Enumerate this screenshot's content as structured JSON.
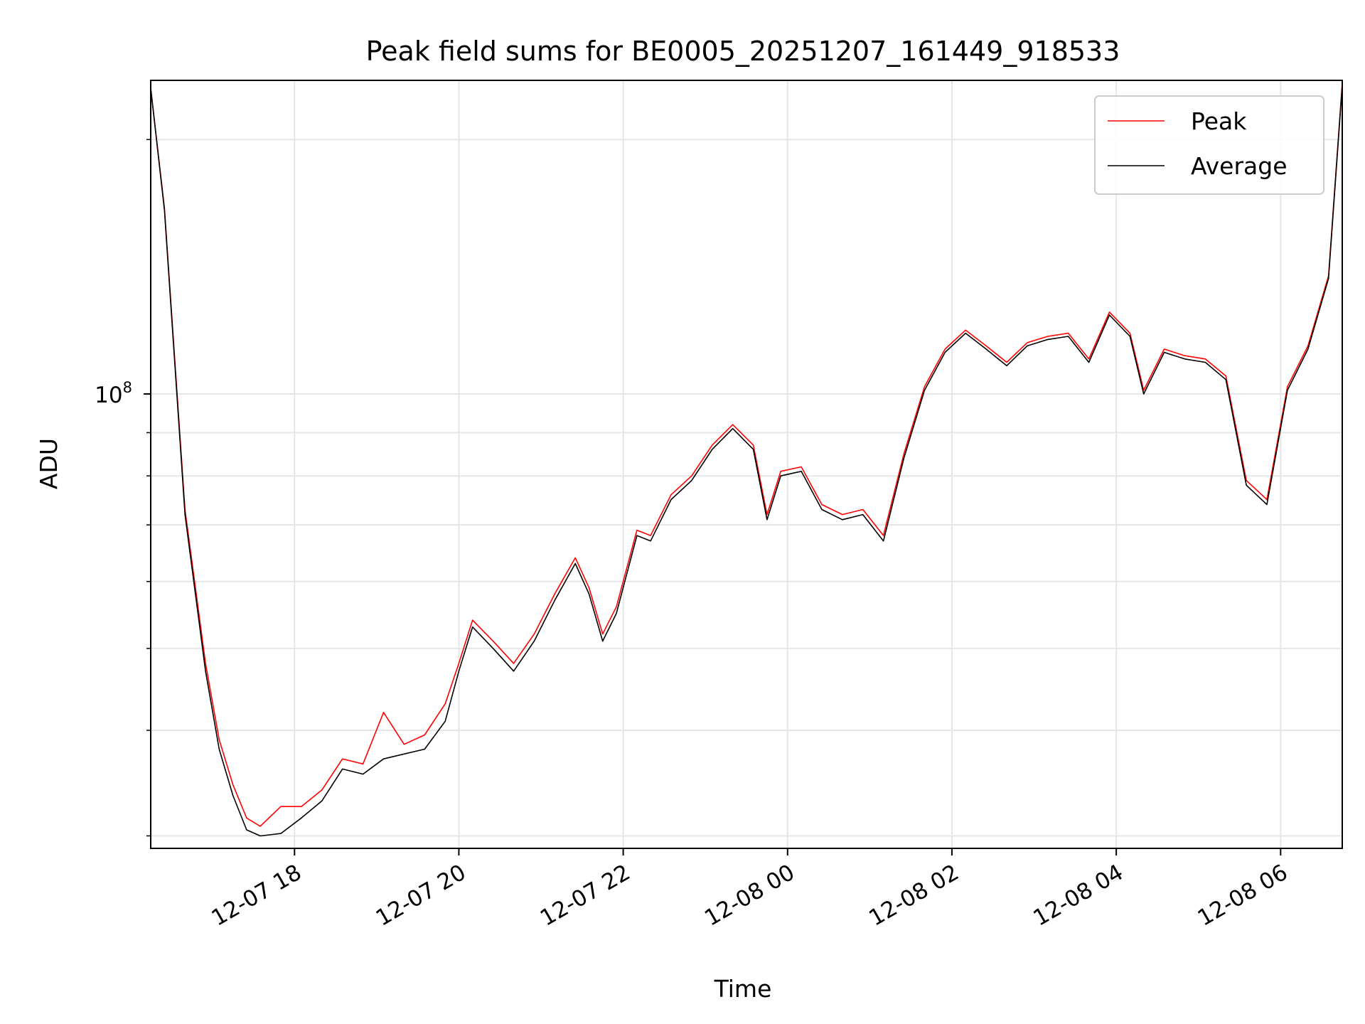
{
  "chart_data": {
    "type": "line",
    "title": "Peak field sums for BE0005_20251207_161449_918533",
    "xlabel": "Time",
    "ylabel": "ADU",
    "yscale": "log",
    "xlim": [
      "2025-12-07 16:15",
      "2025-12-08 06:45"
    ],
    "ylim": [
      29000000,
      235000000
    ],
    "x_ticks": [
      {
        "value": "2025-12-07 18:00",
        "label": "12-07 18"
      },
      {
        "value": "2025-12-07 20:00",
        "label": "12-07 20"
      },
      {
        "value": "2025-12-07 22:00",
        "label": "12-07 22"
      },
      {
        "value": "2025-12-08 00:00",
        "label": "12-08 00"
      },
      {
        "value": "2025-12-08 02:00",
        "label": "12-08 02"
      },
      {
        "value": "2025-12-08 04:00",
        "label": "12-08 04"
      },
      {
        "value": "2025-12-08 06:00",
        "label": "12-08 06"
      }
    ],
    "y_ticks": [
      {
        "value": 100000000,
        "label": "10",
        "exponent": "8"
      }
    ],
    "y_minor_ticks": [
      30000000,
      40000000,
      50000000,
      60000000,
      70000000,
      80000000,
      90000000,
      200000000
    ],
    "grid": true,
    "legend_position": "top-right",
    "series": [
      {
        "name": "Average",
        "color": "#000000",
        "x": [
          "2025-12-07 16:15",
          "2025-12-07 16:25",
          "2025-12-07 16:40",
          "2025-12-07 16:55",
          "2025-12-07 17:05",
          "2025-12-07 17:15",
          "2025-12-07 17:25",
          "2025-12-07 17:35",
          "2025-12-07 17:50",
          "2025-12-07 18:05",
          "2025-12-07 18:20",
          "2025-12-07 18:35",
          "2025-12-07 18:50",
          "2025-12-07 19:05",
          "2025-12-07 19:20",
          "2025-12-07 19:35",
          "2025-12-07 19:50",
          "2025-12-07 20:00",
          "2025-12-07 20:10",
          "2025-12-07 20:25",
          "2025-12-07 20:40",
          "2025-12-07 20:55",
          "2025-12-07 21:10",
          "2025-12-07 21:25",
          "2025-12-07 21:35",
          "2025-12-07 21:45",
          "2025-12-07 21:55",
          "2025-12-07 22:10",
          "2025-12-07 22:20",
          "2025-12-07 22:35",
          "2025-12-07 22:50",
          "2025-12-07 23:05",
          "2025-12-07 23:20",
          "2025-12-07 23:35",
          "2025-12-07 23:45",
          "2025-12-07 23:55",
          "2025-12-08 00:10",
          "2025-12-08 00:25",
          "2025-12-08 00:40",
          "2025-12-08 00:55",
          "2025-12-08 01:10",
          "2025-12-08 01:25",
          "2025-12-08 01:40",
          "2025-12-08 01:55",
          "2025-12-08 02:10",
          "2025-12-08 02:25",
          "2025-12-08 02:40",
          "2025-12-08 02:55",
          "2025-12-08 03:10",
          "2025-12-08 03:25",
          "2025-12-08 03:40",
          "2025-12-08 03:55",
          "2025-12-08 04:10",
          "2025-12-08 04:20",
          "2025-12-08 04:35",
          "2025-12-08 04:50",
          "2025-12-08 05:05",
          "2025-12-08 05:20",
          "2025-12-08 05:35",
          "2025-12-08 05:50",
          "2025-12-08 06:05",
          "2025-12-08 06:20",
          "2025-12-08 06:35",
          "2025-12-08 06:45"
        ],
        "values": [
          230000000,
          165000000,
          72000000,
          47000000,
          38000000,
          33500000,
          30500000,
          30000000,
          30200000,
          31500000,
          33000000,
          36000000,
          35500000,
          37000000,
          37500000,
          38000000,
          41000000,
          47000000,
          53000000,
          50000000,
          47000000,
          51000000,
          57000000,
          63000000,
          58000000,
          51000000,
          55000000,
          68000000,
          67000000,
          75000000,
          79000000,
          86000000,
          91000000,
          86000000,
          71000000,
          80000000,
          81000000,
          73000000,
          71000000,
          72000000,
          67000000,
          84000000,
          101000000,
          112000000,
          118000000,
          113000000,
          108000000,
          114000000,
          116000000,
          117000000,
          109000000,
          124000000,
          117000000,
          100000000,
          112000000,
          110000000,
          109000000,
          104000000,
          78000000,
          74000000,
          101000000,
          113000000,
          137000000,
          232000000
        ]
      },
      {
        "name": "Peak",
        "color": "#ff0000",
        "x": [
          "2025-12-07 16:15",
          "2025-12-07 16:25",
          "2025-12-07 16:40",
          "2025-12-07 16:55",
          "2025-12-07 17:05",
          "2025-12-07 17:15",
          "2025-12-07 17:25",
          "2025-12-07 17:35",
          "2025-12-07 17:50",
          "2025-12-07 18:05",
          "2025-12-07 18:20",
          "2025-12-07 18:35",
          "2025-12-07 18:50",
          "2025-12-07 19:05",
          "2025-12-07 19:20",
          "2025-12-07 19:35",
          "2025-12-07 19:50",
          "2025-12-07 20:00",
          "2025-12-07 20:10",
          "2025-12-07 20:25",
          "2025-12-07 20:40",
          "2025-12-07 20:55",
          "2025-12-07 21:10",
          "2025-12-07 21:25",
          "2025-12-07 21:35",
          "2025-12-07 21:45",
          "2025-12-07 21:55",
          "2025-12-07 22:10",
          "2025-12-07 22:20",
          "2025-12-07 22:35",
          "2025-12-07 22:50",
          "2025-12-07 23:05",
          "2025-12-07 23:20",
          "2025-12-07 23:35",
          "2025-12-07 23:45",
          "2025-12-07 23:55",
          "2025-12-08 00:10",
          "2025-12-08 00:25",
          "2025-12-08 00:40",
          "2025-12-08 00:55",
          "2025-12-08 01:10",
          "2025-12-08 01:25",
          "2025-12-08 01:40",
          "2025-12-08 01:55",
          "2025-12-08 02:10",
          "2025-12-08 02:25",
          "2025-12-08 02:40",
          "2025-12-08 02:55",
          "2025-12-08 03:10",
          "2025-12-08 03:25",
          "2025-12-08 03:40",
          "2025-12-08 03:55",
          "2025-12-08 04:10",
          "2025-12-08 04:20",
          "2025-12-08 04:35",
          "2025-12-08 04:50",
          "2025-12-08 05:05",
          "2025-12-08 05:20",
          "2025-12-08 05:35",
          "2025-12-08 05:50",
          "2025-12-08 06:05",
          "2025-12-08 06:20",
          "2025-12-08 06:35",
          "2025-12-08 06:45"
        ],
        "values": [
          230000000,
          166000000,
          73000000,
          48000000,
          39000000,
          34500000,
          31500000,
          30800000,
          32500000,
          32500000,
          34000000,
          37000000,
          36500000,
          42000000,
          38500000,
          39500000,
          43000000,
          48000000,
          54000000,
          51000000,
          48000000,
          52000000,
          58000000,
          64000000,
          59000000,
          52000000,
          56000000,
          69000000,
          68000000,
          76000000,
          80000000,
          87000000,
          92000000,
          87000000,
          72000000,
          81000000,
          82000000,
          74000000,
          72000000,
          73000000,
          68000000,
          85000000,
          102000000,
          113000000,
          119000000,
          114000000,
          109000000,
          115000000,
          117000000,
          118000000,
          110000000,
          125000000,
          118000000,
          101000000,
          113000000,
          111000000,
          110000000,
          105000000,
          79000000,
          75000000,
          102000000,
          114000000,
          138000000,
          233000000
        ]
      }
    ]
  }
}
